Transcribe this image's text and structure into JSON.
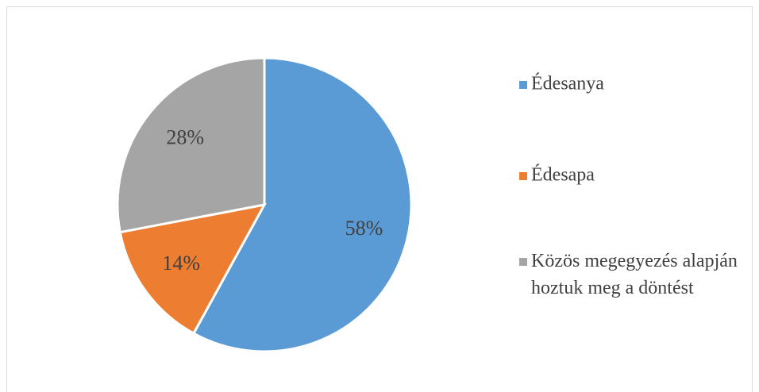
{
  "chart_data": {
    "type": "pie",
    "categories": [
      "Édesanya",
      "Édesapa",
      "Közös megegyezés alapján hoztuk meg a döntést"
    ],
    "values": [
      58,
      14,
      28
    ],
    "value_labels": [
      "58%",
      "14%",
      "28%"
    ],
    "colors": [
      "#5b9bd5",
      "#ed7d31",
      "#a5a5a5"
    ],
    "legend": "right"
  }
}
